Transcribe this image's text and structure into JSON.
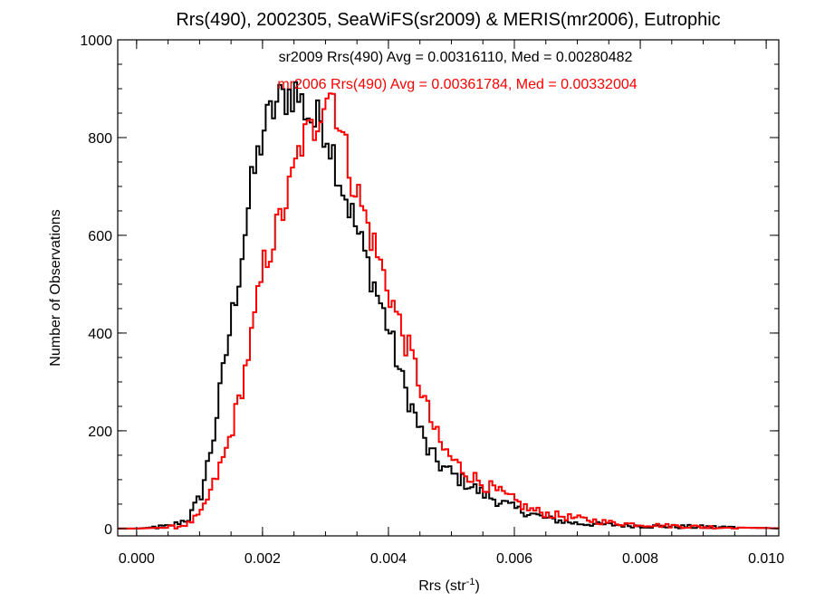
{
  "chart_data": {
    "type": "line",
    "step": true,
    "title": "Rrs(490), 2002305, SeaWiFS(sr2009) & MERIS(mr2006), Eutrophic",
    "xlabel": {
      "base": "Rrs (str",
      "sup": "-1",
      "close": ")"
    },
    "ylabel": "Number of Observations",
    "xlim": [
      -0.0003,
      0.0102
    ],
    "ylim": [
      -15,
      1000
    ],
    "xticks": [
      0.0,
      0.002,
      0.004,
      0.006,
      0.008,
      0.01
    ],
    "xtick_labels": [
      "0.000",
      "0.002",
      "0.004",
      "0.006",
      "0.008",
      "0.010"
    ],
    "yticks": [
      0,
      200,
      400,
      600,
      800,
      1000
    ],
    "ytick_labels": [
      "0",
      "200",
      "400",
      "600",
      "800",
      "1000"
    ],
    "grid": false,
    "annotations": [
      {
        "text": "sr2009 Rrs(490) Avg = 0.00316110, Med = 0.00280482",
        "color": "#000000"
      },
      {
        "text": "mr2006 Rrs(490) Avg = 0.00361784, Med = 0.00332004",
        "color": "#ff0000"
      }
    ],
    "series": [
      {
        "color": "#000000",
        "x": [
          0.0,
          0.0005,
          0.0008,
          0.001,
          0.0012,
          0.0014,
          0.0016,
          0.0018,
          0.002,
          0.0022,
          0.0023,
          0.0024,
          0.0025,
          0.0026,
          0.0027,
          0.0028,
          0.0029,
          0.003,
          0.0031,
          0.0032,
          0.0034,
          0.0036,
          0.0038,
          0.004,
          0.0042,
          0.0044,
          0.0046,
          0.0048,
          0.005,
          0.0055,
          0.006,
          0.0065,
          0.007,
          0.0075,
          0.008,
          0.009,
          0.01,
          0.0102
        ],
        "y": [
          0,
          5,
          20,
          70,
          190,
          360,
          520,
          700,
          820,
          870,
          880,
          890,
          895,
          870,
          850,
          830,
          840,
          810,
          770,
          720,
          640,
          560,
          480,
          400,
          300,
          230,
          160,
          130,
          110,
          70,
          40,
          20,
          10,
          8,
          5,
          3,
          1,
          0
        ]
      },
      {
        "color": "#ff0000",
        "x": [
          0.0,
          0.0006,
          0.0008,
          0.001,
          0.0012,
          0.0014,
          0.0016,
          0.0018,
          0.002,
          0.0022,
          0.0024,
          0.0026,
          0.0028,
          0.0029,
          0.003,
          0.0031,
          0.0032,
          0.0033,
          0.0034,
          0.0036,
          0.0038,
          0.004,
          0.0042,
          0.0044,
          0.0046,
          0.0048,
          0.005,
          0.0052,
          0.0055,
          0.006,
          0.0062,
          0.0065,
          0.007,
          0.0075,
          0.008,
          0.009,
          0.01,
          0.0102
        ],
        "y": [
          0,
          3,
          10,
          30,
          90,
          160,
          260,
          390,
          540,
          610,
          690,
          790,
          820,
          870,
          895,
          890,
          830,
          770,
          720,
          640,
          560,
          480,
          400,
          330,
          240,
          170,
          140,
          115,
          90,
          55,
          40,
          30,
          20,
          12,
          8,
          3,
          1,
          0
        ]
      }
    ]
  }
}
